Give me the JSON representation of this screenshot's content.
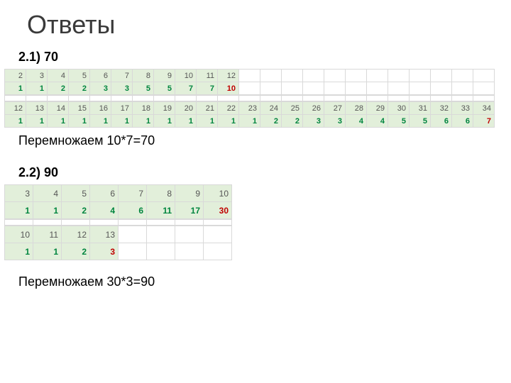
{
  "title": "Ответы",
  "section1": {
    "heading": "2.1) 70",
    "table_a": {
      "header": [
        "2",
        "3",
        "4",
        "5",
        "6",
        "7",
        "8",
        "9",
        "10",
        "11",
        "12"
      ],
      "values": [
        "1",
        "1",
        "2",
        "2",
        "3",
        "3",
        "5",
        "5",
        "7",
        "7",
        "10"
      ],
      "last_red": true,
      "blank_cols_after": 12
    },
    "table_b": {
      "header": [
        "12",
        "13",
        "14",
        "15",
        "16",
        "17",
        "18",
        "19",
        "20",
        "21",
        "22",
        "23",
        "24",
        "25",
        "26",
        "27",
        "28",
        "29",
        "30",
        "31",
        "32",
        "33",
        "34"
      ],
      "values": [
        "1",
        "1",
        "1",
        "1",
        "1",
        "1",
        "1",
        "1",
        "1",
        "1",
        "1",
        "1",
        "2",
        "2",
        "3",
        "3",
        "4",
        "4",
        "5",
        "5",
        "6",
        "6",
        "7"
      ],
      "last_red": true,
      "blank_cols_after": 0
    },
    "caption": "Перемножаем 10*7=70"
  },
  "section2": {
    "heading": "2.2) 90",
    "table_a": {
      "header": [
        "3",
        "4",
        "5",
        "6",
        "7",
        "8",
        "9",
        "10"
      ],
      "values": [
        "1",
        "1",
        "2",
        "4",
        "6",
        "11",
        "17",
        "30"
      ],
      "last_red": true,
      "blank_cols_after": 0
    },
    "table_b": {
      "header": [
        "10",
        "11",
        "12",
        "13"
      ],
      "values": [
        "1",
        "1",
        "2",
        "3"
      ],
      "last_red": true,
      "blank_cols_after": 4
    },
    "caption": "Перемножаем 30*3=90"
  },
  "colors": {
    "cell_bg": "#e2efda",
    "grid": "#d9d9d9",
    "green": "#00853e",
    "red": "#c00000"
  }
}
